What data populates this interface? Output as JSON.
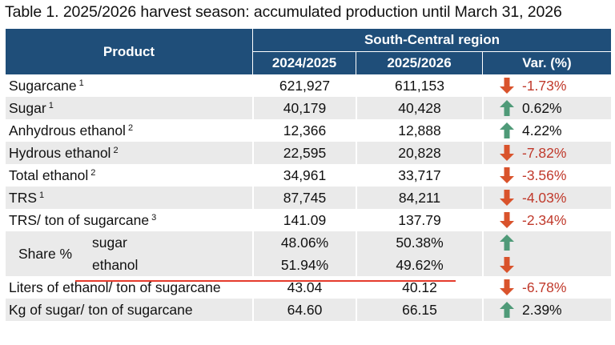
{
  "caption": "Table 1. 2025/2026 harvest season: accumulated production until March 31, 2026",
  "header": {
    "product": "Product",
    "region": "South-Central region",
    "col1": "2024/2025",
    "col2": "2025/2026",
    "col3": "Var. (%)"
  },
  "colors": {
    "header_bg": "#1f4e79",
    "down": "#d9532c",
    "up": "#4f9a78",
    "negative_text": "#c0392b",
    "underline": "#e53b2c"
  },
  "rows": [
    {
      "name": "Sugarcane",
      "note": "1",
      "v1": "621,927",
      "v2": "611,153",
      "var": "-1.73%",
      "dir": "down"
    },
    {
      "name": "Sugar",
      "note": "1",
      "v1": "40,179",
      "v2": "40,428",
      "var": "0.62%",
      "dir": "up"
    },
    {
      "name": "Anhydrous ethanol",
      "note": "2",
      "v1": "12,366",
      "v2": "12,888",
      "var": "4.22%",
      "dir": "up"
    },
    {
      "name": "Hydrous ethanol",
      "note": "2",
      "v1": "22,595",
      "v2": "20,828",
      "var": "-7.82%",
      "dir": "down"
    },
    {
      "name": "Total ethanol",
      "note": "2",
      "v1": "34,961",
      "v2": "33,717",
      "var": "-3.56%",
      "dir": "down"
    },
    {
      "name": "TRS",
      "note": "1",
      "v1": "87,745",
      "v2": "84,211",
      "var": "-4.03%",
      "dir": "down"
    },
    {
      "name": "TRS/ ton of sugarcane",
      "note": "3",
      "v1": "141.09",
      "v2": "137.79",
      "var": "-2.34%",
      "dir": "down"
    }
  ],
  "share": {
    "label": "Share %",
    "items": [
      {
        "name": "sugar",
        "v1": "48.06%",
        "v2": "50.38%",
        "dir": "up"
      },
      {
        "name": "ethanol",
        "v1": "51.94%",
        "v2": "49.62%",
        "dir": "down"
      }
    ]
  },
  "bottom_rows": [
    {
      "name": "Liters of ethanol/ ton of sugarcane",
      "v1": "43.04",
      "v2": "40.12",
      "var": "-6.78%",
      "dir": "down"
    },
    {
      "name": "Kg of sugar/ ton of sugarcane",
      "v1": "64.60",
      "v2": "66.15",
      "var": "2.39%",
      "dir": "up"
    }
  ]
}
